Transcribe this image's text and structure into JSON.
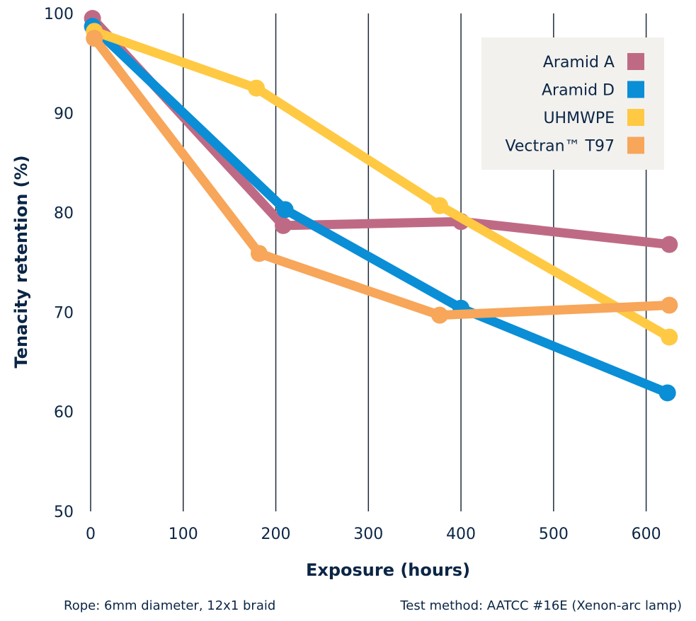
{
  "chart_data": {
    "type": "line",
    "xlabel": "Exposure (hours)",
    "ylabel": "Tenacity retention (%)",
    "xlim": [
      0,
      650
    ],
    "ylim": [
      50,
      100
    ],
    "x_ticks": [
      0,
      100,
      200,
      300,
      400,
      500,
      600
    ],
    "y_ticks": [
      50,
      60,
      70,
      80,
      90,
      100
    ],
    "grid": "vertical",
    "legend_position": "top-right",
    "series": [
      {
        "name": "Aramid A",
        "color": "#bf6a85",
        "x": [
          2,
          208,
          400,
          625
        ],
        "y": [
          99.5,
          78.7,
          79.1,
          76.8
        ]
      },
      {
        "name": "Aramid D",
        "color": "#0a8ed6",
        "x": [
          2,
          210,
          400,
          623
        ],
        "y": [
          98.7,
          80.3,
          70.4,
          61.9
        ]
      },
      {
        "name": "UHMWPE",
        "color": "#ffc943",
        "x": [
          4,
          179,
          377,
          625
        ],
        "y": [
          98.2,
          92.5,
          80.7,
          67.5
        ]
      },
      {
        "name": "Vectran™ T97",
        "color": "#f7a65a",
        "x": [
          4,
          182,
          377,
          625
        ],
        "y": [
          97.5,
          75.9,
          69.7,
          70.7
        ]
      }
    ],
    "footnotes": [
      "Rope: 6mm diameter, 12x1 braid",
      "Test method: AATCC #16E (Xenon-arc lamp)"
    ]
  }
}
